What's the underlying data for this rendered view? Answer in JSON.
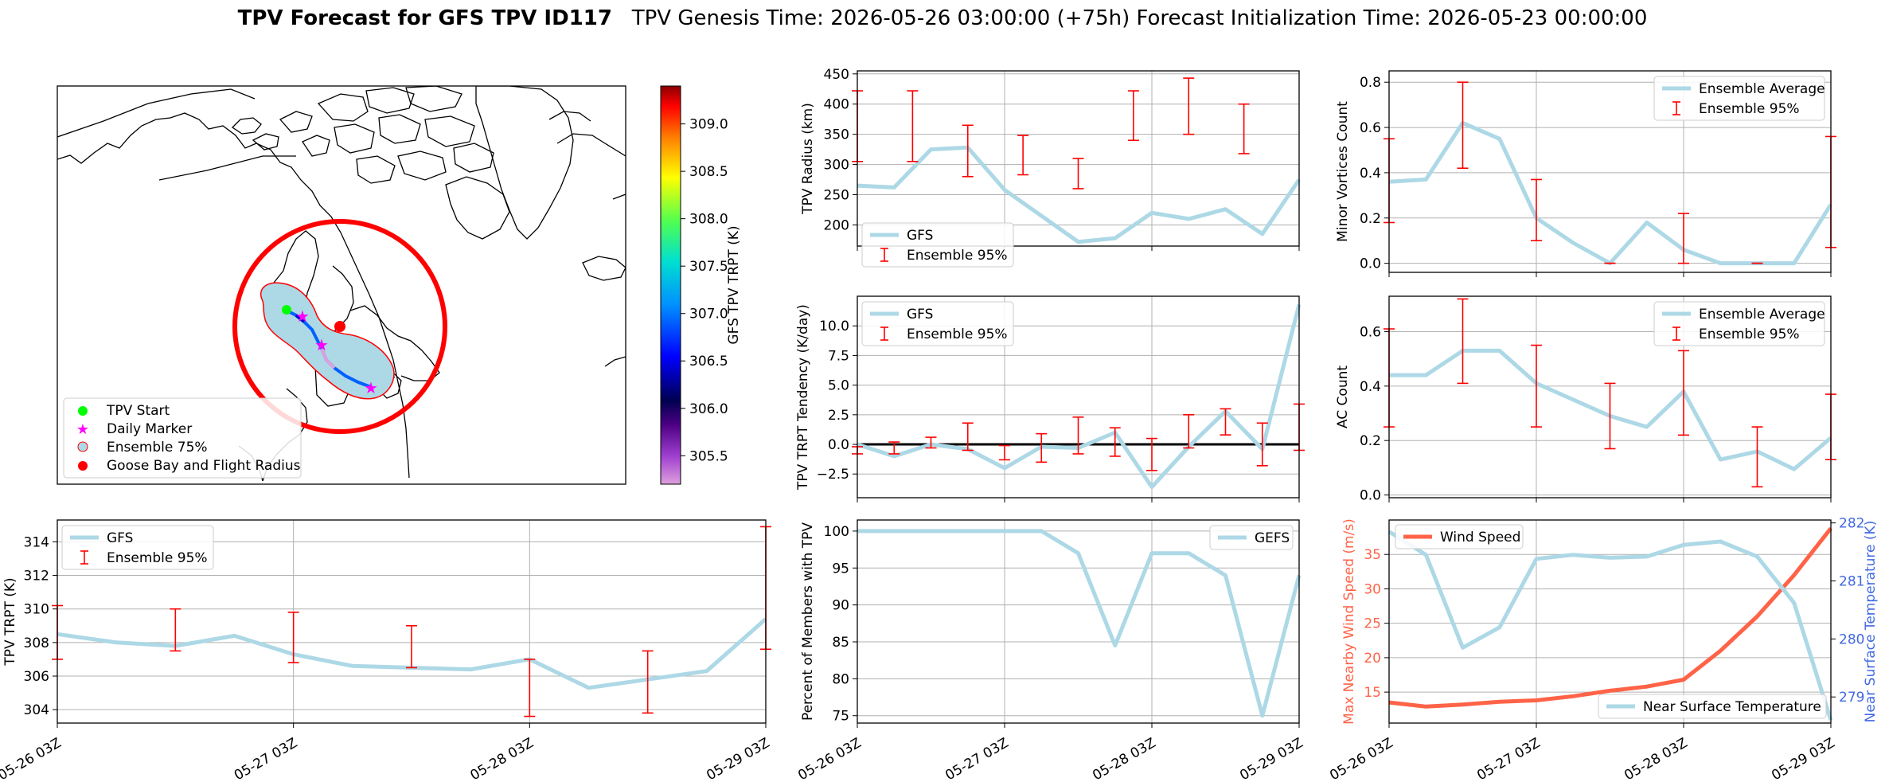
{
  "header": {
    "title_bold": "TPV Forecast for GFS TPV ID117",
    "title_rest": "TPV Genesis Time: 2026-05-26 03:00:00 (+75h)   Forecast Initialization Time: 2026-05-23 00:00:00"
  },
  "colors": {
    "series": "#add8e6",
    "errorbar": "#ff0000",
    "wind": "#ff6347",
    "temp_axis": "#4169e1",
    "grid": "#b0b0b0"
  },
  "time_ticks": [
    "05-26 03Z",
    "05-27 03Z",
    "05-28 03Z",
    "05-29 03Z"
  ],
  "map": {
    "colorbar_label": "GFS TPV TRPT (K)",
    "colorbar_range": [
      305.2,
      309.4
    ],
    "colorbar_ticks": [
      "305.5",
      "306.0",
      "306.5",
      "307.0",
      "307.5",
      "308.0",
      "308.5",
      "309.0"
    ],
    "legend": [
      {
        "label": "TPV Start",
        "icon": "green-circle-icon"
      },
      {
        "label": "Daily Marker",
        "icon": "magenta-star-icon"
      },
      {
        "label": "Ensemble 75%",
        "icon": "lightblue-circle-icon"
      },
      {
        "label": "Goose Bay and Flight Radius",
        "icon": "red-circle-icon"
      }
    ]
  },
  "chart_data": [
    {
      "id": "radius",
      "type": "line",
      "ylabel": "TPV Radius (km)",
      "ylim": [
        165,
        455
      ],
      "yticks": [
        200,
        250,
        300,
        350,
        400,
        450
      ],
      "x": [
        0,
        1,
        2,
        3,
        4,
        5,
        6,
        7,
        8,
        9,
        10,
        11,
        12
      ],
      "series": [
        {
          "name": "GFS",
          "values": [
            265,
            262,
            325,
            328,
            258,
            215,
            172,
            178,
            220,
            210,
            226,
            185,
            275
          ]
        }
      ],
      "errorbars": {
        "name": "Ensemble 95%",
        "x": [
          0,
          1.5,
          3,
          4.5,
          6,
          7.5,
          9,
          10.5
        ],
        "low": [
          305,
          305,
          280,
          283,
          260,
          340,
          350,
          318
        ],
        "high": [
          422,
          422,
          365,
          348,
          310,
          422,
          443,
          400
        ]
      },
      "legend": "lower-left",
      "grid": true
    },
    {
      "id": "minor",
      "type": "line",
      "ylabel": "Minor Vortices Count",
      "ylim": [
        -0.04,
        0.85
      ],
      "yticks": [
        "0.0",
        "0.2",
        "0.4",
        "0.6",
        "0.8"
      ],
      "x": [
        0,
        1,
        2,
        3,
        4,
        5,
        6,
        7,
        8,
        9,
        10,
        11,
        12
      ],
      "series": [
        {
          "name": "Ensemble Average",
          "values": [
            0.36,
            0.37,
            0.62,
            0.55,
            0.2,
            0.09,
            0.0,
            0.18,
            0.06,
            0.0,
            0.0,
            0.0,
            0.26
          ]
        }
      ],
      "errorbars": {
        "name": "Ensemble 95%",
        "x": [
          0,
          2,
          4,
          6,
          8,
          10,
          12
        ],
        "low": [
          0.18,
          0.42,
          0.1,
          0.0,
          0.0,
          0.0,
          0.07
        ],
        "high": [
          0.55,
          0.8,
          0.37,
          0.0,
          0.22,
          0.0,
          0.56
        ]
      },
      "legend": "upper-right",
      "grid": true
    },
    {
      "id": "tendency",
      "type": "line",
      "ylabel": "TPV TRPT Tendency (K/day)",
      "ylim": [
        -4.5,
        12.5
      ],
      "yticks": [
        "−2.5",
        "0.0",
        "2.5",
        "5.0",
        "7.5",
        "10.0"
      ],
      "x": [
        0,
        1,
        2,
        3,
        4,
        5,
        6,
        7,
        8,
        9,
        10,
        11,
        12
      ],
      "series": [
        {
          "name": "GFS",
          "values": [
            0.0,
            -1.0,
            0.0,
            -0.4,
            -2.0,
            -0.2,
            -0.3,
            1.0,
            -3.6,
            -0.2,
            2.8,
            -0.4,
            11.8
          ]
        }
      ],
      "errorbars": {
        "name": "Ensemble 95%",
        "x": [
          0,
          1,
          2,
          3,
          4,
          5,
          6,
          7,
          8,
          9,
          10,
          11,
          12
        ],
        "low": [
          -0.8,
          -0.8,
          -0.3,
          -0.5,
          -1.3,
          -1.5,
          -0.8,
          -1.0,
          -2.2,
          -0.3,
          0.8,
          -1.8,
          -0.5
        ],
        "high": [
          -0.2,
          0.2,
          0.6,
          1.8,
          -0.1,
          0.9,
          2.3,
          1.4,
          0.5,
          2.5,
          3.0,
          1.8,
          3.4
        ]
      },
      "hline": 0,
      "legend": "upper-left",
      "grid": true
    },
    {
      "id": "ac",
      "type": "line",
      "ylabel": "AC Count",
      "ylim": [
        -0.01,
        0.73
      ],
      "yticks": [
        "0.0",
        "0.2",
        "0.4",
        "0.6"
      ],
      "x": [
        0,
        1,
        2,
        3,
        4,
        5,
        6,
        7,
        8,
        9,
        10,
        11,
        12
      ],
      "series": [
        {
          "name": "Ensemble Average",
          "values": [
            0.44,
            0.44,
            0.53,
            0.53,
            0.41,
            0.35,
            0.29,
            0.25,
            0.38,
            0.13,
            0.16,
            0.095,
            0.21
          ]
        }
      ],
      "errorbars": {
        "name": "Ensemble 95%",
        "x": [
          0,
          2,
          4,
          6,
          8,
          10,
          12
        ],
        "low": [
          0.25,
          0.41,
          0.25,
          0.17,
          0.22,
          0.03,
          0.13
        ],
        "high": [
          0.61,
          0.72,
          0.55,
          0.41,
          0.53,
          0.25,
          0.37
        ]
      },
      "legend": "upper-right",
      "grid": true
    },
    {
      "id": "trpt",
      "type": "line",
      "ylabel": "TPV TRPT (K)",
      "ylim": [
        303.2,
        315.3
      ],
      "yticks": [
        304,
        306,
        308,
        310,
        312,
        314
      ],
      "x": [
        0,
        1,
        2,
        3,
        4,
        5,
        6,
        7,
        8,
        9,
        10,
        11,
        12
      ],
      "series": [
        {
          "name": "GFS",
          "values": [
            308.5,
            308.0,
            307.8,
            308.4,
            307.3,
            306.6,
            306.5,
            306.4,
            307.0,
            305.3,
            305.8,
            306.3,
            309.4
          ]
        }
      ],
      "errorbars": {
        "name": "Ensemble 95%",
        "x": [
          0,
          2,
          4,
          6,
          8,
          10,
          12
        ],
        "low": [
          307.0,
          307.5,
          306.8,
          306.5,
          303.6,
          303.8,
          307.6
        ],
        "high": [
          310.2,
          310.0,
          309.8,
          309.0,
          307.0,
          307.5,
          314.9
        ]
      },
      "legend": "upper-left",
      "grid": true
    },
    {
      "id": "percent",
      "type": "line",
      "ylabel": "Percent of Members with TPV",
      "ylim": [
        74,
        101.5
      ],
      "yticks": [
        75,
        80,
        85,
        90,
        95,
        100
      ],
      "x": [
        0,
        1,
        2,
        3,
        4,
        5,
        6,
        7,
        8,
        9,
        10,
        11,
        12
      ],
      "series": [
        {
          "name": "GEFS",
          "values": [
            100,
            100,
            100,
            100,
            100,
            100,
            97,
            84.5,
            97,
            97,
            94,
            75,
            94
          ]
        }
      ],
      "legend": "upper-right",
      "grid": true
    },
    {
      "id": "wind_temp",
      "type": "line",
      "ylabel": "Max Nearby Wind Speed (m/s)",
      "ylim": [
        10.5,
        40
      ],
      "yticks": [
        15,
        20,
        25,
        30,
        35
      ],
      "y2label": "Near Surface Temperature (K)",
      "y2lim": [
        278.55,
        282.05
      ],
      "y2ticks": [
        279,
        280,
        281,
        282
      ],
      "x": [
        0,
        1,
        2,
        3,
        4,
        5,
        6,
        7,
        8,
        9,
        10,
        11,
        12
      ],
      "series": [
        {
          "name": "Wind Speed",
          "axis": "left",
          "values": [
            13.5,
            12.9,
            13.2,
            13.6,
            13.8,
            14.4,
            15.2,
            15.8,
            16.8,
            21.0,
            26.0,
            32.0,
            38.8
          ]
        },
        {
          "name": "Near Surface Temperature",
          "axis": "right",
          "values": [
            281.85,
            281.45,
            279.85,
            280.2,
            281.38,
            281.45,
            281.4,
            281.42,
            281.62,
            281.68,
            281.42,
            280.62,
            278.6
          ]
        }
      ],
      "legend": "upper-left / lower-right",
      "grid": true
    }
  ]
}
